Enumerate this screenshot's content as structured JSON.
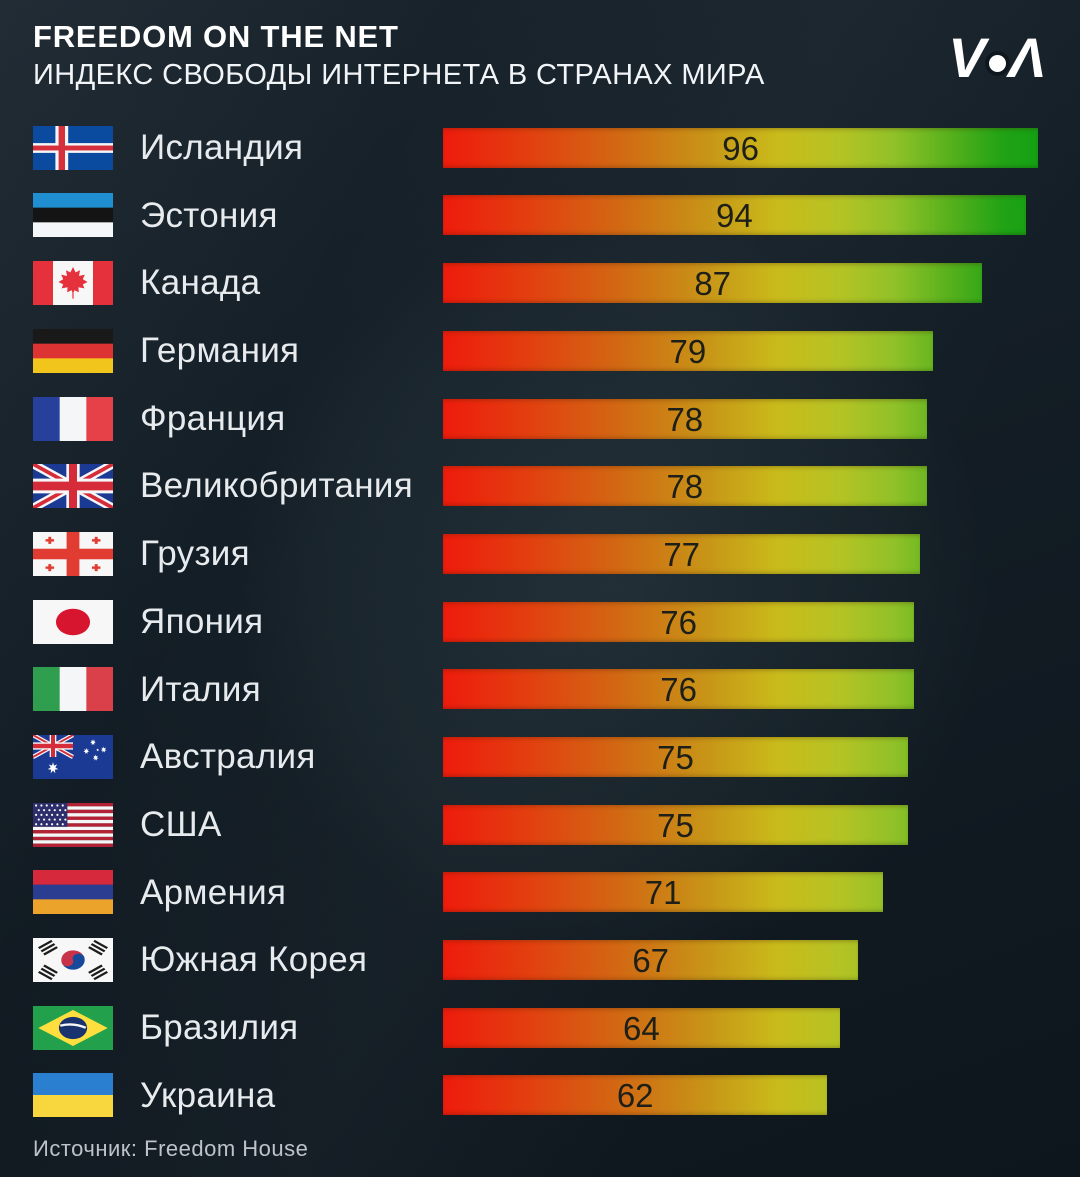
{
  "header": {
    "title": "FREEDOM ON THE NET",
    "subtitle": "ИНДЕКС СВОБОДЫ ИНТЕРНЕТА В СТРАНАХ МИРА",
    "logo_parts": [
      "V",
      "Λ"
    ]
  },
  "footer": {
    "source": "Источник: Freedom House"
  },
  "colors": {
    "background": "#121c24",
    "label_text": "#e7ebee",
    "value_text": "#1d1f18",
    "bar_gradient": [
      "#ee1b0c",
      "#d26713",
      "#c9bb1b",
      "#8fc128",
      "#0a9e12"
    ]
  },
  "chart_data": {
    "type": "bar",
    "orientation": "horizontal",
    "title": "FREEDOM ON THE NET — ИНДЕКС СВОБОДЫ ИНТЕРНЕТА В СТРАНАХ МИРА",
    "source": "Freedom House",
    "value_range": [
      0,
      100
    ],
    "legend": "none",
    "grid": false,
    "categories": [
      "Исландия",
      "Эстония",
      "Канада",
      "Германия",
      "Франция",
      "Великобритания",
      "Грузия",
      "Япония",
      "Италия",
      "Австралия",
      "США",
      "Армения",
      "Южная Корея",
      "Бразилия",
      "Украина"
    ],
    "values": [
      96,
      94,
      87,
      79,
      78,
      78,
      77,
      76,
      76,
      75,
      75,
      71,
      67,
      64,
      62
    ],
    "rows": [
      {
        "country": "Исландия",
        "value": 96,
        "flag": "iceland"
      },
      {
        "country": "Эстония",
        "value": 94,
        "flag": "estonia"
      },
      {
        "country": "Канада",
        "value": 87,
        "flag": "canada"
      },
      {
        "country": "Германия",
        "value": 79,
        "flag": "germany"
      },
      {
        "country": "Франция",
        "value": 78,
        "flag": "france"
      },
      {
        "country": "Великобритания",
        "value": 78,
        "flag": "uk"
      },
      {
        "country": "Грузия",
        "value": 77,
        "flag": "georgia"
      },
      {
        "country": "Япония",
        "value": 76,
        "flag": "japan"
      },
      {
        "country": "Италия",
        "value": 76,
        "flag": "italy"
      },
      {
        "country": "Австралия",
        "value": 75,
        "flag": "australia"
      },
      {
        "country": "США",
        "value": 75,
        "flag": "usa"
      },
      {
        "country": "Армения",
        "value": 71,
        "flag": "armenia"
      },
      {
        "country": "Южная Корея",
        "value": 67,
        "flag": "south_korea"
      },
      {
        "country": "Бразилия",
        "value": 64,
        "flag": "brazil"
      },
      {
        "country": "Украина",
        "value": 62,
        "flag": "ukraine"
      }
    ]
  }
}
